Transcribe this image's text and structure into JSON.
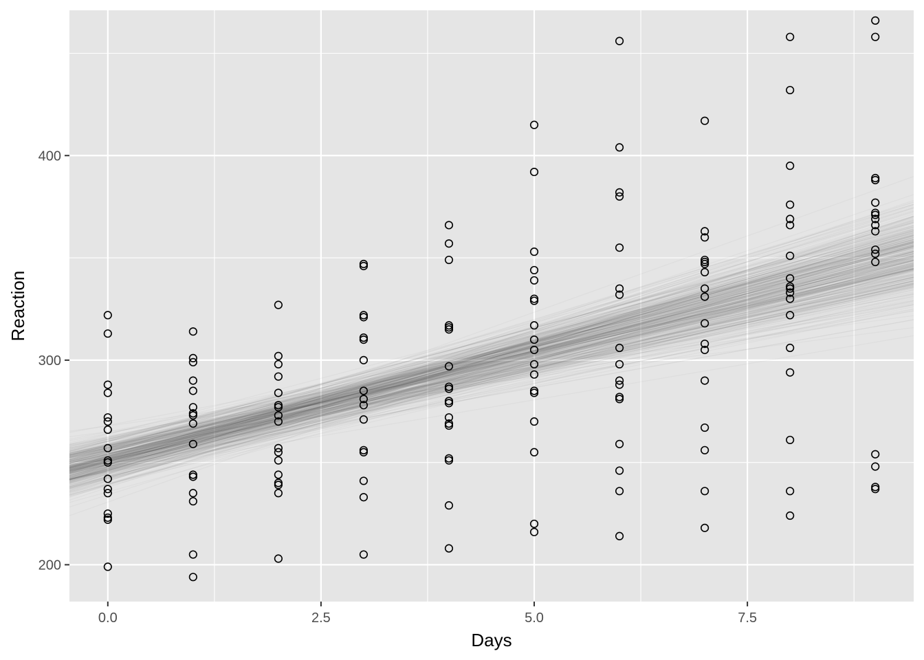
{
  "chart_data": {
    "type": "scatter",
    "title": "",
    "xlabel": "Days",
    "ylabel": "Reaction",
    "xlim": [
      -0.45,
      9.45
    ],
    "ylim": [
      182,
      471
    ],
    "x_ticks": [
      0.0,
      2.5,
      5.0,
      7.5
    ],
    "x_tick_labels": [
      "0.0",
      "2.5",
      "5.0",
      "7.5"
    ],
    "y_ticks": [
      200,
      300,
      400
    ],
    "y_tick_labels": [
      "200",
      "300",
      "400"
    ],
    "grid": true,
    "panel_background": "#e5e5e5",
    "grid_color": "#ffffff",
    "point_color": "#000000",
    "line_color": "#333333",
    "points": [
      [
        0,
        322
      ],
      [
        0,
        313
      ],
      [
        0,
        288
      ],
      [
        0,
        284
      ],
      [
        0,
        272
      ],
      [
        0,
        270
      ],
      [
        0,
        266
      ],
      [
        0,
        257
      ],
      [
        0,
        251
      ],
      [
        0,
        250
      ],
      [
        0,
        242
      ],
      [
        0,
        237
      ],
      [
        0,
        235
      ],
      [
        0,
        225
      ],
      [
        0,
        223
      ],
      [
        0,
        222
      ],
      [
        0,
        199
      ],
      [
        1,
        314
      ],
      [
        1,
        301
      ],
      [
        1,
        299
      ],
      [
        1,
        290
      ],
      [
        1,
        285
      ],
      [
        1,
        277
      ],
      [
        1,
        274
      ],
      [
        1,
        273
      ],
      [
        1,
        269
      ],
      [
        1,
        259
      ],
      [
        1,
        244
      ],
      [
        1,
        243
      ],
      [
        1,
        235
      ],
      [
        1,
        231
      ],
      [
        1,
        205
      ],
      [
        1,
        194
      ],
      [
        2,
        327
      ],
      [
        2,
        302
      ],
      [
        2,
        298
      ],
      [
        2,
        292
      ],
      [
        2,
        284
      ],
      [
        2,
        278
      ],
      [
        2,
        277
      ],
      [
        2,
        273
      ],
      [
        2,
        270
      ],
      [
        2,
        257
      ],
      [
        2,
        255
      ],
      [
        2,
        251
      ],
      [
        2,
        244
      ],
      [
        2,
        240
      ],
      [
        2,
        239
      ],
      [
        2,
        235
      ],
      [
        2,
        203
      ],
      [
        3,
        347
      ],
      [
        3,
        346
      ],
      [
        3,
        322
      ],
      [
        3,
        321
      ],
      [
        3,
        311
      ],
      [
        3,
        310
      ],
      [
        3,
        300
      ],
      [
        3,
        285
      ],
      [
        3,
        281
      ],
      [
        3,
        278
      ],
      [
        3,
        271
      ],
      [
        3,
        256
      ],
      [
        3,
        255
      ],
      [
        3,
        241
      ],
      [
        3,
        233
      ],
      [
        3,
        205
      ],
      [
        4,
        366
      ],
      [
        4,
        357
      ],
      [
        4,
        349
      ],
      [
        4,
        317
      ],
      [
        4,
        316
      ],
      [
        4,
        315
      ],
      [
        4,
        297
      ],
      [
        4,
        287
      ],
      [
        4,
        286
      ],
      [
        4,
        280
      ],
      [
        4,
        279
      ],
      [
        4,
        272
      ],
      [
        4,
        269
      ],
      [
        4,
        268
      ],
      [
        4,
        252
      ],
      [
        4,
        251
      ],
      [
        4,
        229
      ],
      [
        4,
        208
      ],
      [
        5,
        415
      ],
      [
        5,
        392
      ],
      [
        5,
        353
      ],
      [
        5,
        344
      ],
      [
        5,
        339
      ],
      [
        5,
        330
      ],
      [
        5,
        329
      ],
      [
        5,
        317
      ],
      [
        5,
        310
      ],
      [
        5,
        305
      ],
      [
        5,
        298
      ],
      [
        5,
        293
      ],
      [
        5,
        285
      ],
      [
        5,
        284
      ],
      [
        5,
        270
      ],
      [
        5,
        255
      ],
      [
        5,
        220
      ],
      [
        5,
        216
      ],
      [
        6,
        456
      ],
      [
        6,
        404
      ],
      [
        6,
        382
      ],
      [
        6,
        380
      ],
      [
        6,
        355
      ],
      [
        6,
        335
      ],
      [
        6,
        332
      ],
      [
        6,
        306
      ],
      [
        6,
        298
      ],
      [
        6,
        290
      ],
      [
        6,
        288
      ],
      [
        6,
        282
      ],
      [
        6,
        281
      ],
      [
        6,
        259
      ],
      [
        6,
        246
      ],
      [
        6,
        236
      ],
      [
        6,
        214
      ],
      [
        7,
        417
      ],
      [
        7,
        363
      ],
      [
        7,
        360
      ],
      [
        7,
        349
      ],
      [
        7,
        348
      ],
      [
        7,
        347
      ],
      [
        7,
        343
      ],
      [
        7,
        335
      ],
      [
        7,
        331
      ],
      [
        7,
        318
      ],
      [
        7,
        308
      ],
      [
        7,
        305
      ],
      [
        7,
        290
      ],
      [
        7,
        267
      ],
      [
        7,
        256
      ],
      [
        7,
        236
      ],
      [
        7,
        218
      ],
      [
        8,
        458
      ],
      [
        8,
        432
      ],
      [
        8,
        395
      ],
      [
        8,
        376
      ],
      [
        8,
        369
      ],
      [
        8,
        366
      ],
      [
        8,
        351
      ],
      [
        8,
        340
      ],
      [
        8,
        336
      ],
      [
        8,
        335
      ],
      [
        8,
        333
      ],
      [
        8,
        330
      ],
      [
        8,
        322
      ],
      [
        8,
        306
      ],
      [
        8,
        294
      ],
      [
        8,
        261
      ],
      [
        8,
        236
      ],
      [
        8,
        224
      ],
      [
        9,
        466
      ],
      [
        9,
        458
      ],
      [
        9,
        389
      ],
      [
        9,
        388
      ],
      [
        9,
        377
      ],
      [
        9,
        372
      ],
      [
        9,
        371
      ],
      [
        9,
        369
      ],
      [
        9,
        366
      ],
      [
        9,
        363
      ],
      [
        9,
        354
      ],
      [
        9,
        352
      ],
      [
        9,
        348
      ],
      [
        9,
        254
      ],
      [
        9,
        248
      ],
      [
        9,
        238
      ],
      [
        9,
        237
      ]
    ],
    "fitted_lines": {
      "description_count": 420,
      "intercept_mean": 251.5,
      "intercept_sd": 6.0,
      "slope_mean": 10.45,
      "slope_sd": 1.5,
      "opacity": 0.04
    }
  }
}
